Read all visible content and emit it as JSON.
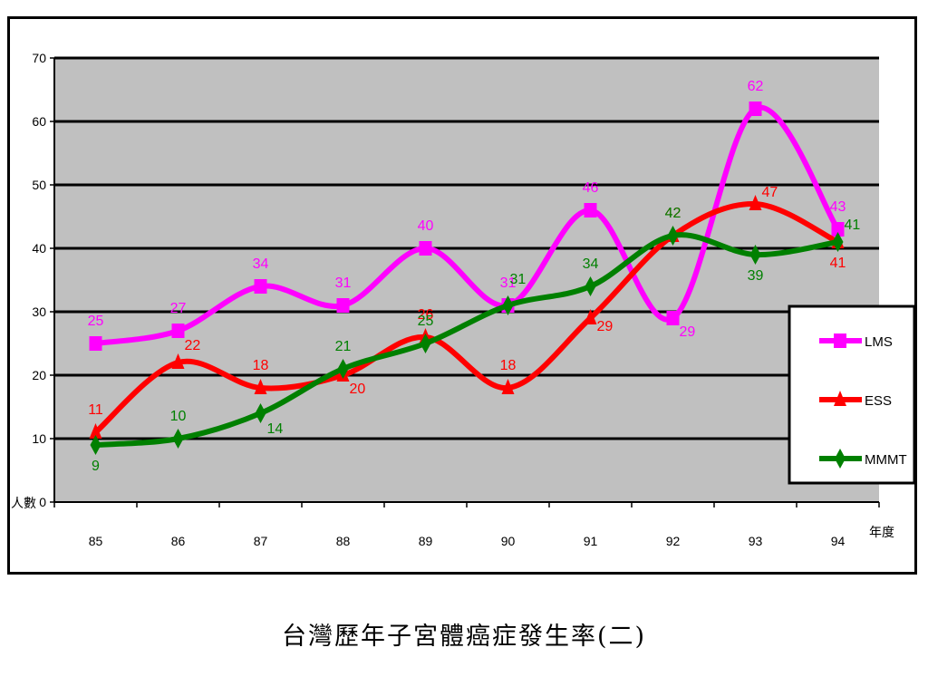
{
  "caption": "台灣歷年子宮體癌症發生率(二)",
  "chart_data": {
    "type": "line",
    "x": [
      "85",
      "86",
      "87",
      "88",
      "89",
      "90",
      "91",
      "92",
      "93",
      "94"
    ],
    "ylim": [
      0,
      70
    ],
    "yticks": [
      "0",
      "10",
      "20",
      "30",
      "40",
      "50",
      "60",
      "70"
    ],
    "ylabel": "人數",
    "xlabel": "年度",
    "grid": true,
    "legend_position": "right",
    "plot_background": "#c0c0c0",
    "series": [
      {
        "name": "LMS",
        "color": "#ff00ff",
        "marker": "square",
        "values": [
          25,
          27,
          34,
          31,
          40,
          31,
          46,
          29,
          62,
          43
        ]
      },
      {
        "name": "ESS",
        "color": "#ff0000",
        "marker": "triangle",
        "values": [
          11,
          22,
          18,
          20,
          26,
          18,
          29,
          42,
          47,
          41
        ]
      },
      {
        "name": "MMMT",
        "color": "#008000",
        "marker": "diamond",
        "values": [
          9,
          10,
          14,
          21,
          25,
          31,
          34,
          42,
          39,
          41
        ]
      }
    ]
  }
}
